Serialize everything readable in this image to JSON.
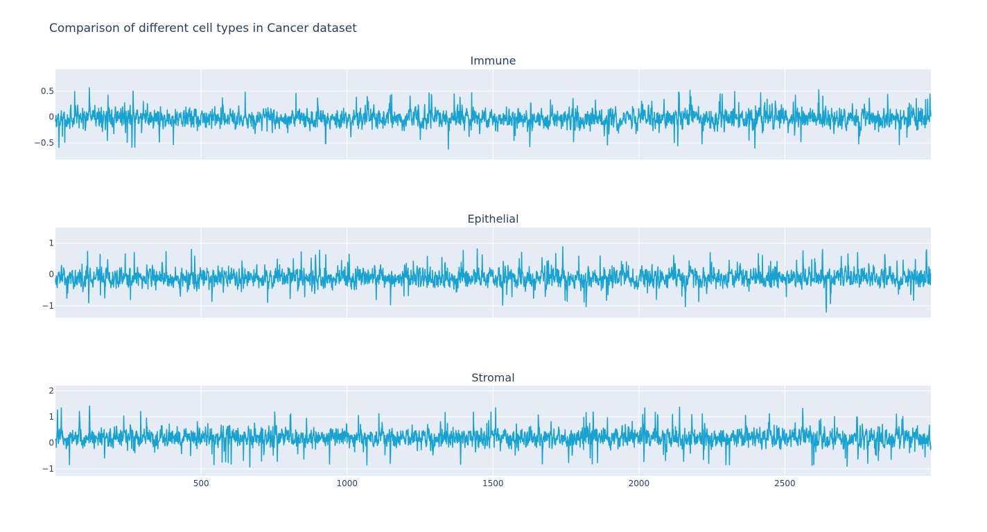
{
  "figure": {
    "title": "Comparison of different cell types in Cancer dataset"
  },
  "colors": {
    "line": "#17a2d2",
    "plot_bg": "#e5ecf6",
    "grid": "#ffffff",
    "text": "#2a3f5f"
  },
  "chart_data": [
    {
      "type": "line",
      "title": "Immune",
      "xlabel": "",
      "ylabel": "",
      "xlim": [
        1,
        3000
      ],
      "ylim": [
        -0.82,
        0.92
      ],
      "yticks": [
        -0.5,
        0,
        0.5
      ],
      "ytick_labels": [
        "−0.5",
        "0",
        "0.5"
      ],
      "xticks": [
        500,
        1000,
        1500,
        2000,
        2500
      ],
      "xtick_labels": [],
      "grid": true,
      "n_points": 3000,
      "observed_range": [
        -0.7,
        0.9
      ],
      "series": [
        {
          "color": "#17a2d2"
        }
      ]
    },
    {
      "type": "line",
      "title": "Epithelial",
      "xlabel": "",
      "ylabel": "",
      "xlim": [
        1,
        3000
      ],
      "ylim": [
        -1.38,
        1.5
      ],
      "yticks": [
        -1,
        0,
        1
      ],
      "ytick_labels": [
        "−1",
        "0",
        "1"
      ],
      "xticks": [
        500,
        1000,
        1500,
        2000,
        2500
      ],
      "xtick_labels": [],
      "grid": true,
      "n_points": 3000,
      "observed_range": [
        -1.2,
        1.4
      ],
      "series": [
        {
          "color": "#17a2d2"
        }
      ]
    },
    {
      "type": "line",
      "title": "Stromal",
      "xlabel": "",
      "ylabel": "",
      "xlim": [
        1,
        3000
      ],
      "ylim": [
        -1.27,
        2.2
      ],
      "yticks": [
        -1,
        0,
        1,
        2
      ],
      "ytick_labels": [
        "−1",
        "0",
        "1",
        "2"
      ],
      "xticks": [
        500,
        1000,
        1500,
        2000,
        2500
      ],
      "xtick_labels": [
        "500",
        "1000",
        "1500",
        "2000",
        "2500"
      ],
      "grid": true,
      "n_points": 3000,
      "observed_range": [
        -1.1,
        2.0
      ],
      "series": [
        {
          "color": "#17a2d2"
        }
      ]
    }
  ]
}
